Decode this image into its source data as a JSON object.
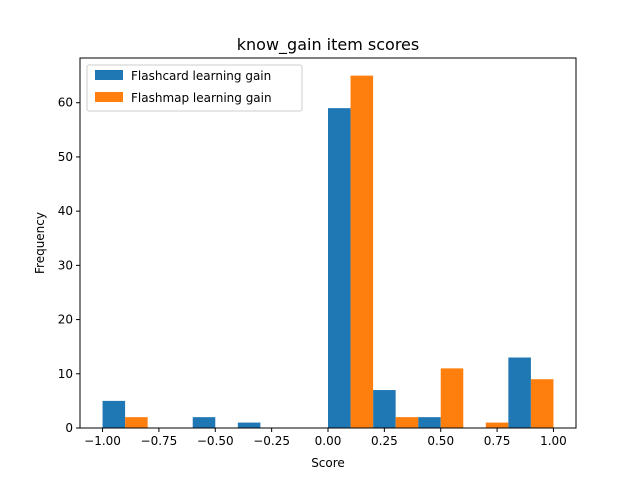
{
  "chart_data": {
    "type": "bar",
    "title": "know_gain item scores",
    "xlabel": "Score",
    "ylabel": "Frequency",
    "xlim": [
      -1.1,
      1.1
    ],
    "ylim": [
      0,
      68.25
    ],
    "xticks": [
      -1.0,
      -0.75,
      -0.5,
      -0.25,
      0.0,
      0.25,
      0.5,
      0.75,
      1.0
    ],
    "xtick_labels": [
      "−1.00",
      "−0.75",
      "−0.50",
      "−0.25",
      "0.00",
      "0.25",
      "0.50",
      "0.75",
      "1.00"
    ],
    "yticks": [
      0,
      10,
      20,
      30,
      40,
      50,
      60
    ],
    "ytick_labels": [
      "0",
      "10",
      "20",
      "30",
      "40",
      "50",
      "60"
    ],
    "bin_edges": [
      -1.0,
      -0.8,
      -0.6,
      -0.4,
      -0.2,
      0.0,
      0.2,
      0.4,
      0.6,
      0.8,
      1.0
    ],
    "grid": false,
    "legend_position": "upper left",
    "series": [
      {
        "name": "Flashcard learning gain",
        "color": "#1f77b4",
        "values": [
          5,
          0,
          2,
          1,
          0,
          59,
          7,
          2,
          0,
          13
        ]
      },
      {
        "name": "Flashmap learning gain",
        "color": "#ff7f0e",
        "values": [
          2,
          0,
          0,
          0,
          0,
          65,
          2,
          11,
          1,
          9
        ]
      }
    ]
  }
}
